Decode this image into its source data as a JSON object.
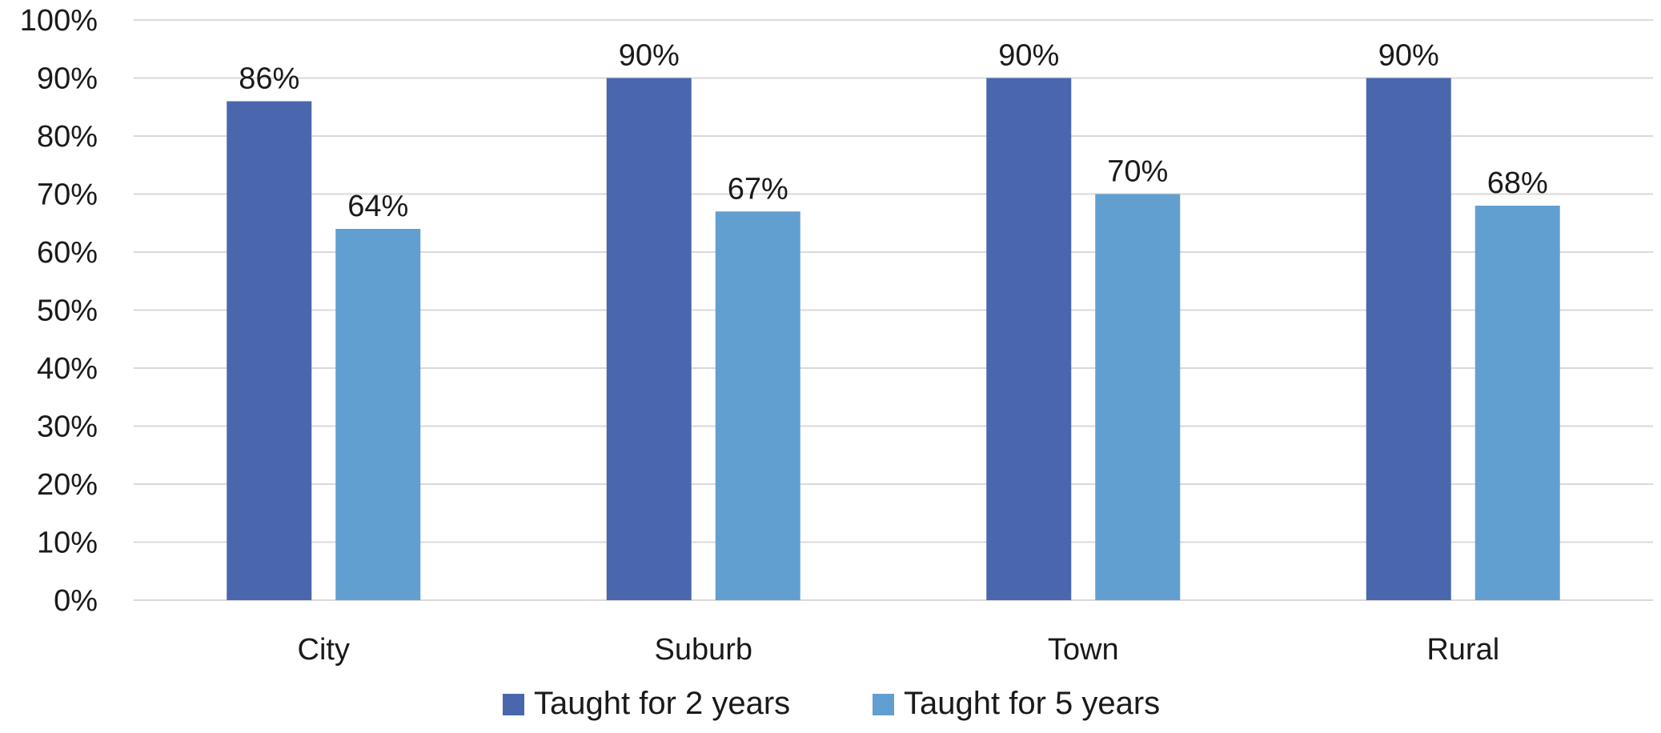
{
  "chart_data": {
    "type": "bar",
    "title": "",
    "xlabel": "",
    "ylabel": "",
    "categories": [
      "City",
      "Suburb",
      "Town",
      "Rural"
    ],
    "series": [
      {
        "name": "Taught for 2 years",
        "values": [
          86,
          90,
          90,
          90
        ],
        "labels": [
          "86%",
          "90%",
          "90%",
          "90%"
        ],
        "color": "#4a67ae"
      },
      {
        "name": "Taught for 5 years",
        "values": [
          64,
          67,
          70,
          68
        ],
        "labels": [
          "64%",
          "67%",
          "70%",
          "68%"
        ],
        "color": "#619fd1"
      }
    ],
    "ylim": [
      0,
      100
    ],
    "yticks": [
      0,
      10,
      20,
      30,
      40,
      50,
      60,
      70,
      80,
      90,
      100
    ],
    "ytick_labels": [
      "0%",
      "10%",
      "20%",
      "30%",
      "40%",
      "50%",
      "60%",
      "70%",
      "80%",
      "90%",
      "100%"
    ],
    "grid": true,
    "legend_position": "bottom-center",
    "gridline_color": "#d9d9d9"
  }
}
